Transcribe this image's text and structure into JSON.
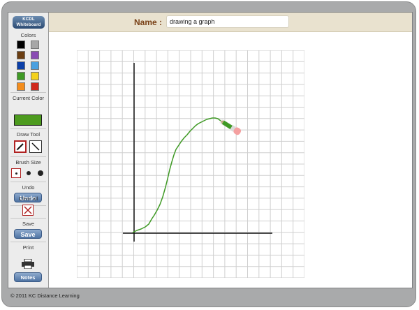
{
  "app": {
    "logo_line1": "KCDL",
    "logo_line2": "Whiteboard",
    "copyright": "© 2011 KC Distance Learning"
  },
  "header": {
    "name_label": "Name :",
    "name_value": "drawing a graph"
  },
  "sidebar": {
    "colors_label": "Colors",
    "colors": [
      "#000000",
      "#a7a7a7",
      "#6b3e12",
      "#8a4bb4",
      "#0b3fa8",
      "#4aa0e0",
      "#3f9a25",
      "#f4d21c",
      "#f48d1c",
      "#d0291c"
    ],
    "current_color_label": "Current Color",
    "current_color": "#4d9b1f",
    "draw_tool_label": "Draw Tool",
    "brush_size_label": "Brush Size",
    "undo_label": "Undo",
    "undo_button": "Undo",
    "clear_all_label": "Clear all",
    "save_label": "Save",
    "save_button": "Save",
    "print_label": "Print",
    "notes_button": "Notes"
  },
  "board": {
    "grid_color": "#cfcfcf",
    "axis_color": "#111111",
    "stroke_color": "#3f9a25",
    "stroke_icon": "pencil-eraser-cursor-icon"
  }
}
